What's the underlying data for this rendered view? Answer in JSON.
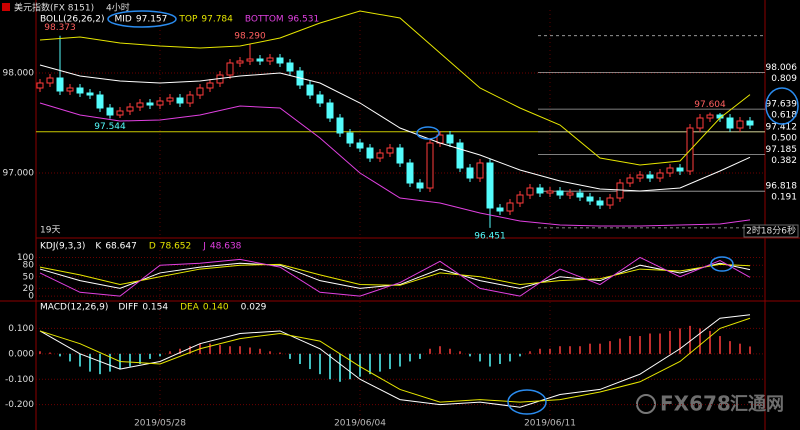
{
  "chart_data": [
    {
      "type": "candlestick",
      "title": "美元指数(FX 8151)",
      "period": "4小时",
      "indicator": "BOLL(26,26,2)",
      "bar_count_label": "19天",
      "countdown": "2时18分6秒",
      "categories": [
        null,
        null,
        null,
        null,
        null,
        null,
        null,
        null,
        null,
        null,
        null,
        null,
        "2019/05/28",
        null,
        null,
        null,
        null,
        null,
        null,
        null,
        null,
        null,
        null,
        null,
        null,
        null,
        null,
        null,
        null,
        null,
        null,
        null,
        "2019/06/04",
        null,
        null,
        null,
        null,
        null,
        null,
        null,
        null,
        null,
        null,
        null,
        null,
        null,
        null,
        null,
        null,
        null,
        null,
        "2019/06/11",
        null,
        null,
        null,
        null,
        null,
        null,
        null,
        null,
        null,
        null,
        null,
        null,
        null,
        null,
        null,
        null,
        null,
        null,
        null,
        null
      ],
      "open": [
        97.85,
        97.9,
        97.95,
        97.82,
        97.85,
        97.8,
        97.78,
        97.65,
        97.58,
        97.62,
        97.66,
        97.7,
        97.68,
        97.72,
        97.75,
        97.7,
        97.78,
        97.85,
        97.9,
        97.98,
        98.1,
        98.12,
        98.14,
        98.12,
        98.15,
        98.1,
        98.02,
        97.88,
        97.78,
        97.7,
        97.55,
        97.4,
        97.3,
        97.25,
        97.15,
        97.2,
        97.25,
        97.1,
        96.9,
        96.85,
        97.3,
        97.38,
        97.3,
        97.05,
        96.95,
        97.1,
        96.65,
        96.62,
        96.7,
        96.78,
        96.85,
        96.8,
        96.82,
        96.78,
        96.8,
        96.76,
        96.72,
        96.68,
        96.75,
        96.9,
        96.95,
        96.98,
        96.95,
        97,
        97.05,
        97.02,
        97.45,
        97.55,
        97.58,
        97.55,
        97.45,
        97.52
      ],
      "high": [
        97.94,
        97.99,
        98.373,
        97.89,
        97.89,
        97.84,
        97.82,
        97.69,
        97.66,
        97.7,
        97.74,
        97.74,
        97.76,
        97.79,
        97.79,
        97.82,
        97.89,
        97.94,
        98.02,
        98.14,
        98.16,
        98.29,
        98.18,
        98.19,
        98.19,
        98.14,
        98.06,
        97.92,
        97.82,
        97.74,
        97.59,
        97.44,
        97.34,
        97.29,
        97.24,
        97.29,
        97.29,
        97.14,
        96.94,
        97.34,
        97.42,
        97.42,
        97.34,
        97.09,
        97.14,
        97.14,
        96.69,
        96.74,
        96.82,
        96.89,
        96.89,
        96.86,
        96.86,
        96.84,
        96.84,
        96.8,
        96.76,
        96.79,
        96.94,
        96.99,
        97.02,
        97.02,
        97.04,
        97.09,
        97.09,
        97.49,
        97.59,
        97.604,
        97.6,
        97.59,
        97.56,
        97.56
      ],
      "low": [
        97.81,
        97.86,
        97.78,
        97.78,
        97.76,
        97.74,
        97.61,
        97.544,
        97.55,
        97.58,
        97.62,
        97.64,
        97.64,
        97.68,
        97.66,
        97.66,
        97.74,
        97.81,
        97.86,
        97.94,
        98.06,
        98.08,
        98.08,
        98.08,
        98.06,
        97.98,
        97.84,
        97.74,
        97.66,
        97.51,
        97.36,
        97.26,
        97.21,
        97.11,
        97.11,
        97.16,
        97.06,
        96.86,
        96.81,
        96.81,
        97.26,
        97.26,
        97.01,
        96.91,
        96.91,
        96.451,
        96.58,
        96.58,
        96.66,
        96.74,
        96.76,
        96.76,
        96.74,
        96.74,
        96.72,
        96.68,
        96.64,
        96.64,
        96.71,
        96.86,
        96.91,
        96.91,
        96.91,
        96.96,
        96.98,
        96.98,
        97.41,
        97.51,
        97.51,
        97.41,
        97.41,
        97.44
      ],
      "close": [
        97.9,
        97.95,
        97.82,
        97.85,
        97.8,
        97.78,
        97.65,
        97.58,
        97.62,
        97.66,
        97.7,
        97.68,
        97.72,
        97.75,
        97.7,
        97.78,
        97.85,
        97.9,
        97.98,
        98.1,
        98.12,
        98.14,
        98.12,
        98.15,
        98.1,
        98.02,
        97.88,
        97.78,
        97.7,
        97.55,
        97.4,
        97.3,
        97.25,
        97.15,
        97.2,
        97.25,
        97.1,
        96.9,
        96.85,
        97.3,
        97.38,
        97.3,
        97.05,
        96.95,
        97.1,
        96.65,
        96.62,
        96.7,
        96.78,
        96.85,
        96.8,
        96.82,
        96.78,
        96.8,
        96.76,
        96.72,
        96.68,
        96.75,
        96.9,
        96.95,
        96.98,
        96.95,
        97,
        97.05,
        97.02,
        97.45,
        97.55,
        97.58,
        97.55,
        97.45,
        97.52,
        97.48
      ],
      "up_color": "#ff3c3c",
      "down_color": "#54fcfc",
      "x": [
        0,
        4,
        8,
        12,
        16,
        20,
        24,
        28,
        32,
        36,
        40,
        44,
        48,
        52,
        56,
        60,
        64,
        68,
        71
      ],
      "series": [
        {
          "name": "MID",
          "color": "#ffffff",
          "values": [
            98.08,
            97.97,
            97.92,
            97.9,
            97.92,
            97.97,
            98.0,
            97.9,
            97.7,
            97.45,
            97.3,
            97.18,
            97.03,
            96.92,
            96.84,
            96.82,
            96.85,
            97.02,
            97.157
          ]
        },
        {
          "name": "TOP",
          "color": "#e6e600",
          "values": [
            98.33,
            98.36,
            98.3,
            98.27,
            98.25,
            98.27,
            98.35,
            98.5,
            98.62,
            98.55,
            98.2,
            97.85,
            97.65,
            97.48,
            97.15,
            97.08,
            97.12,
            97.55,
            97.784
          ]
        },
        {
          "name": "BOTTOM",
          "color": "#e040e0",
          "values": [
            97.7,
            97.58,
            97.52,
            97.53,
            97.58,
            97.67,
            97.65,
            97.35,
            97.0,
            96.75,
            96.7,
            96.6,
            96.52,
            96.48,
            96.47,
            96.47,
            96.48,
            96.49,
            96.531
          ]
        }
      ],
      "annotations": [
        {
          "x": 2,
          "value": 98.373
        },
        {
          "x": 21,
          "value": 98.29,
          "label": "98.290"
        },
        {
          "x": 7,
          "value": 97.544
        },
        {
          "x": 45,
          "value": 96.451
        },
        {
          "x": 67,
          "value": 97.604
        }
      ],
      "horizontal_lines": [
        {
          "value": 97.412,
          "color": "#c8c800"
        }
      ],
      "fibonacci": [
        {
          "price": 98.373
        },
        {
          "price": 98.006,
          "ratio": 0.809
        },
        {
          "price": 97.639,
          "ratio": 0.618
        },
        {
          "price": 97.412,
          "ratio": {
            "value": 0.5,
            "label": "0.500"
          }
        },
        {
          "price": 97.185,
          "ratio": 0.382
        },
        {
          "price": 96.818,
          "ratio": 0.191
        },
        {
          "price": 96.451
        }
      ],
      "ylim": [
        96.37,
        98.63
      ],
      "yticks": [
        {
          "value": 98,
          "label": "98.000"
        },
        {
          "value": 97,
          "label": "97.000"
        }
      ]
    },
    {
      "type": "line",
      "indicator": "KDJ(9,3,3)",
      "x": [
        0,
        4,
        8,
        12,
        16,
        20,
        24,
        28,
        32,
        36,
        40,
        44,
        48,
        52,
        56,
        60,
        64,
        68,
        71
      ],
      "series": [
        {
          "name": "K",
          "color": "#ffffff",
          "values": [
            70,
            40,
            20,
            60,
            75,
            85,
            80,
            40,
            20,
            30,
            70,
            40,
            20,
            50,
            40,
            80,
            60,
            85,
            68.647
          ]
        },
        {
          "name": "D",
          "color": "#e6e600",
          "values": [
            75,
            55,
            30,
            50,
            70,
            80,
            82,
            55,
            30,
            28,
            60,
            50,
            30,
            40,
            45,
            70,
            65,
            82,
            78.652
          ]
        },
        {
          "name": "J",
          "color": "#e040e0",
          "values": [
            60,
            10,
            0,
            80,
            85,
            95,
            75,
            10,
            0,
            35,
            90,
            20,
            0,
            70,
            30,
            100,
            50,
            92,
            48.638
          ]
        }
      ],
      "ylim": [
        -10,
        140
      ],
      "yticks": [
        100,
        80,
        50,
        20,
        0
      ]
    },
    {
      "type": "macd",
      "indicator": "MACD(12,26,9)",
      "histogram": [
        0.01,
        0.005,
        -0.01,
        -0.03,
        -0.05,
        -0.07,
        -0.08,
        -0.07,
        -0.06,
        -0.05,
        -0.04,
        -0.02,
        -0.01,
        0.01,
        0.02,
        0.03,
        0.04,
        0.04,
        0.035,
        0.03,
        0.03,
        0.025,
        0.02,
        0.01,
        0.005,
        -0.02,
        -0.04,
        -0.06,
        -0.08,
        -0.1,
        -0.11,
        -0.1,
        -0.09,
        -0.08,
        -0.07,
        -0.06,
        -0.05,
        -0.03,
        -0.02,
        0.02,
        0.03,
        0.02,
        0.01,
        -0.01,
        -0.03,
        -0.05,
        -0.04,
        -0.03,
        -0.01,
        0.01,
        0.02,
        0.02,
        0.03,
        0.03,
        0.03,
        0.04,
        0.04,
        0.05,
        0.06,
        0.07,
        0.07,
        0.08,
        0.08,
        0.09,
        0.1,
        0.11,
        0.1,
        0.09,
        0.07,
        0.05,
        0.04,
        0.029
      ],
      "up_color": "#ff3c3c",
      "down_color": "#54fcfc",
      "x": [
        0,
        4,
        8,
        12,
        16,
        20,
        24,
        28,
        32,
        36,
        40,
        44,
        48,
        52,
        56,
        60,
        64,
        68,
        71
      ],
      "series": [
        {
          "name": "DIFF",
          "color": "#ffffff",
          "values": [
            0.09,
            0.0,
            -0.06,
            -0.03,
            0.04,
            0.08,
            0.09,
            0.02,
            -0.1,
            -0.18,
            -0.2,
            -0.19,
            -0.21,
            -0.16,
            -0.14,
            -0.08,
            0.02,
            0.14,
            0.154
          ]
        },
        {
          "name": "DEA",
          "color": "#e6e600",
          "values": [
            0.09,
            0.04,
            -0.03,
            -0.04,
            0.02,
            0.06,
            0.08,
            0.05,
            -0.05,
            -0.14,
            -0.19,
            -0.18,
            -0.19,
            -0.18,
            -0.15,
            -0.11,
            -0.03,
            0.1,
            0.14
          ],
          "value_labels": [
            null,
            null,
            null,
            null,
            null,
            null,
            null,
            null,
            null,
            null,
            null,
            null,
            null,
            null,
            null,
            null,
            null,
            null,
            "0.140"
          ]
        }
      ],
      "ylim": [
        -0.28,
        0.2
      ],
      "yticks": [
        {
          "value": 0.1,
          "label": "0.100"
        },
        {
          "value": 0,
          "label": "0.000"
        },
        {
          "value": -0.1,
          "label": "-0.100"
        },
        {
          "value": -0.2,
          "label": "-0.200"
        }
      ]
    }
  ],
  "watermark": {
    "brand": "FX678",
    "site": "汇通网"
  }
}
